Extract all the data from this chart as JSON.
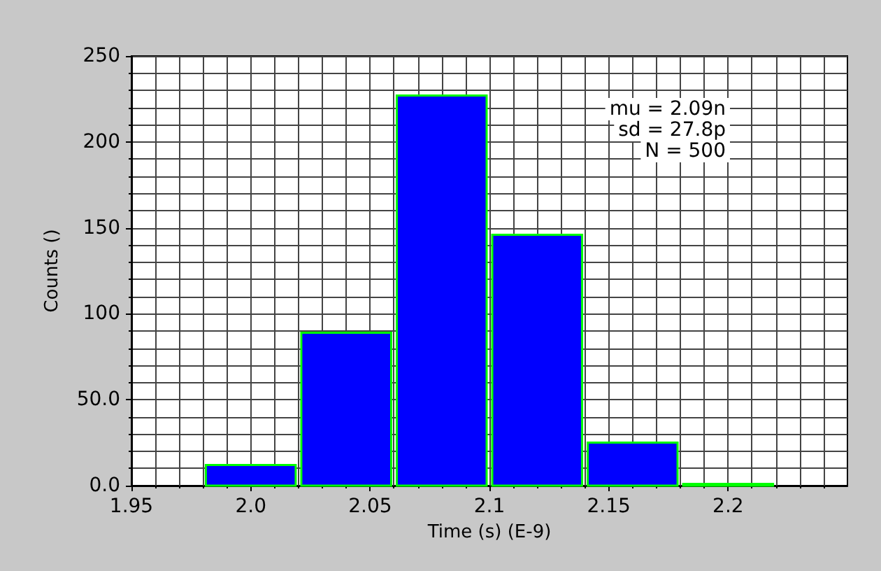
{
  "chart_data": {
    "type": "histogram",
    "xlabel": "Time (s) (E-9)",
    "ylabel": "Counts ()",
    "bins": [
      1.98,
      2.02,
      2.06,
      2.1,
      2.14,
      2.18,
      2.22
    ],
    "values": [
      12,
      89,
      227,
      146,
      25,
      1
    ],
    "color": "#0000ff",
    "xlim": [
      1.95,
      2.25
    ],
    "xticks": [
      1.95,
      {
        "value": 2.0,
        "label": "2.0"
      },
      2.05,
      2.1,
      2.15,
      2.2
    ],
    "ylim": [
      0,
      250
    ],
    "yticks": [
      {
        "value": 0,
        "label": "0.0"
      },
      {
        "value": 50,
        "label": "50.0"
      },
      100,
      150,
      200,
      250
    ],
    "grid": true,
    "annotations": [
      "mu = 2.09n",
      "sd = 27.8p",
      "N = 500"
    ]
  }
}
